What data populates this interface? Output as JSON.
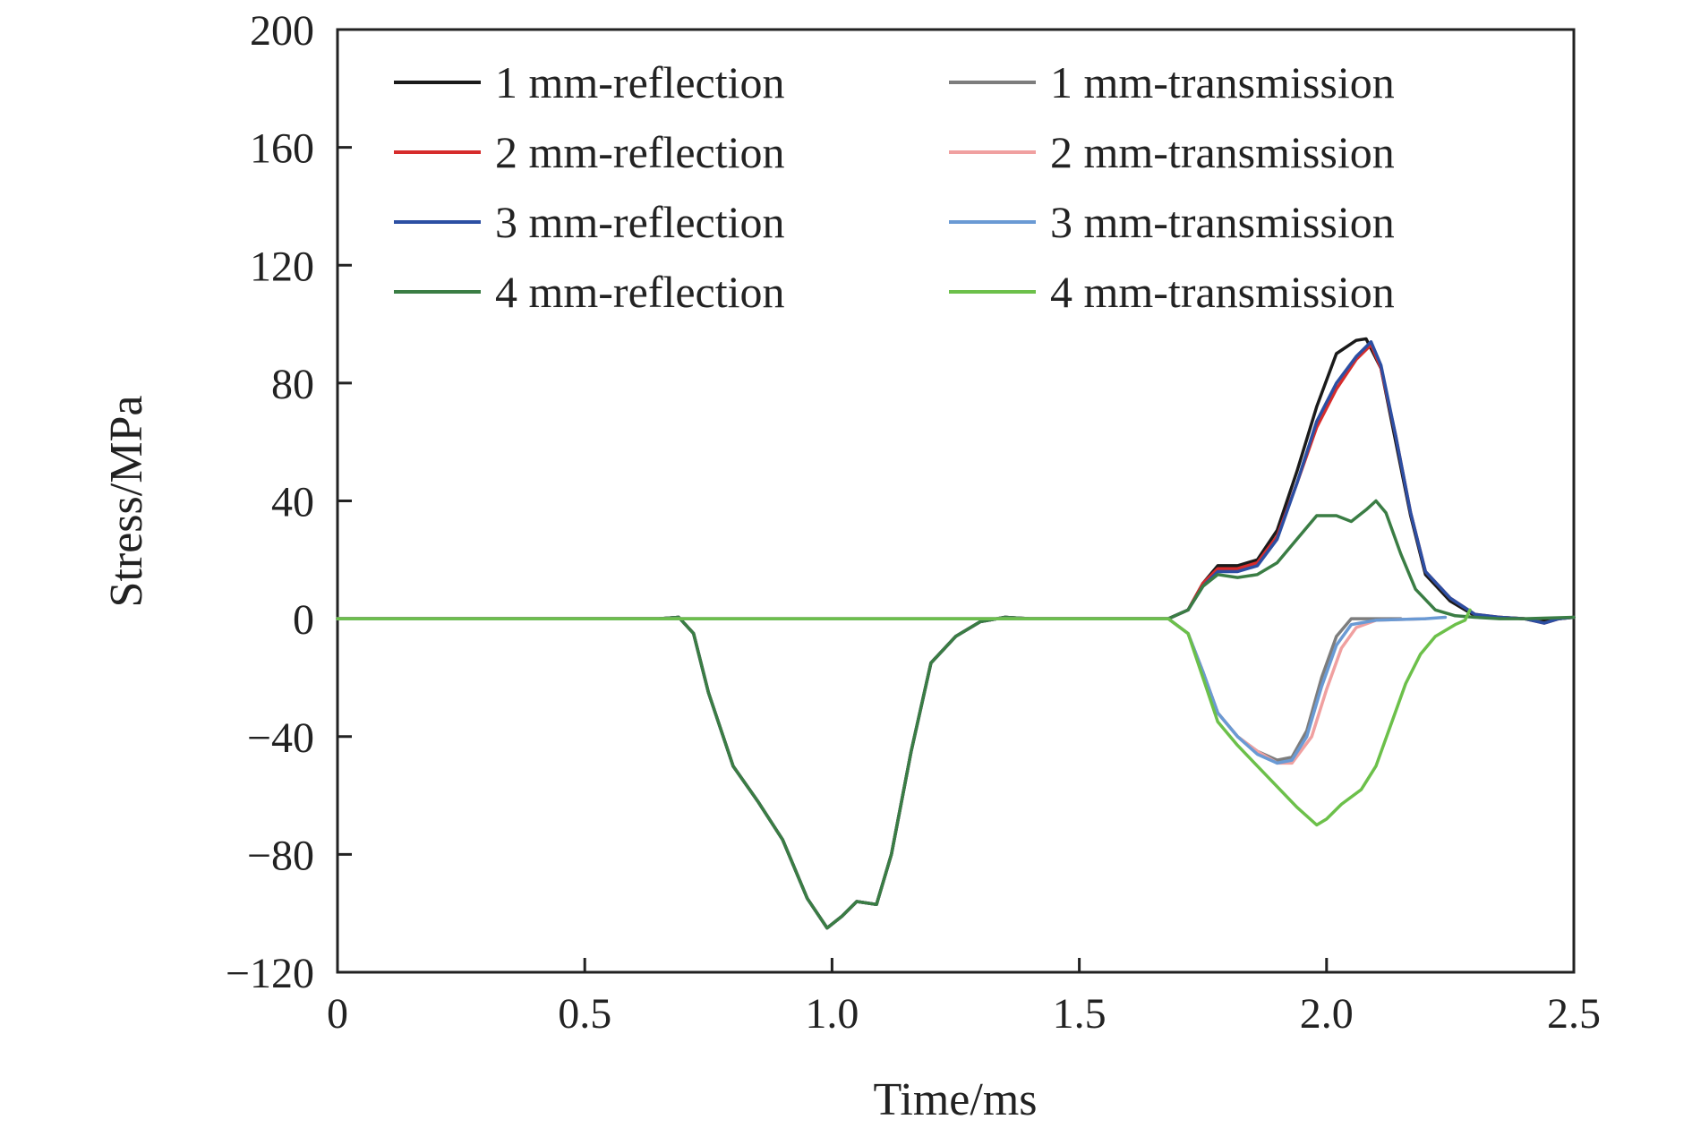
{
  "chart_data": {
    "type": "line",
    "xlabel": "Time/ms",
    "ylabel": "Stress/MPa",
    "xlim": [
      0,
      2.5
    ],
    "ylim": [
      -120,
      200
    ],
    "xticks": [
      0,
      0.5,
      1.0,
      1.5,
      2.0,
      2.5
    ],
    "xtick_labels": [
      "0",
      "0.5",
      "1.0",
      "1.5",
      "2.0",
      "2.5"
    ],
    "yticks": [
      -120,
      -80,
      -40,
      0,
      40,
      80,
      120,
      160,
      200
    ],
    "ytick_labels": [
      "−120",
      "−80",
      "−40",
      "0",
      "40",
      "80",
      "120",
      "160",
      "200"
    ],
    "grid": false,
    "legend_position": "top",
    "series": [
      {
        "name": "1 mm-reflection",
        "color": "#1a1a1a",
        "points": [
          [
            0,
            0
          ],
          [
            0.65,
            0
          ],
          [
            0.69,
            0.5
          ],
          [
            0.72,
            -5
          ],
          [
            0.75,
            -25
          ],
          [
            0.8,
            -50
          ],
          [
            0.85,
            -62
          ],
          [
            0.9,
            -75
          ],
          [
            0.95,
            -95
          ],
          [
            0.99,
            -105
          ],
          [
            1.02,
            -101
          ],
          [
            1.05,
            -96
          ],
          [
            1.09,
            -97
          ],
          [
            1.12,
            -80
          ],
          [
            1.16,
            -45
          ],
          [
            1.2,
            -15
          ],
          [
            1.25,
            -6
          ],
          [
            1.3,
            -1
          ],
          [
            1.35,
            0.5
          ],
          [
            1.4,
            0
          ],
          [
            1.68,
            0
          ],
          [
            1.72,
            3
          ],
          [
            1.75,
            12
          ],
          [
            1.78,
            18
          ],
          [
            1.82,
            18
          ],
          [
            1.86,
            20
          ],
          [
            1.9,
            30
          ],
          [
            1.94,
            50
          ],
          [
            1.98,
            72
          ],
          [
            2.02,
            90
          ],
          [
            2.06,
            94.5
          ],
          [
            2.08,
            95
          ],
          [
            2.11,
            85
          ],
          [
            2.14,
            60
          ],
          [
            2.17,
            35
          ],
          [
            2.2,
            15
          ],
          [
            2.25,
            6
          ],
          [
            2.3,
            1
          ],
          [
            2.35,
            0.5
          ],
          [
            2.4,
            0
          ],
          [
            2.43,
            -1
          ],
          [
            2.47,
            0
          ],
          [
            2.5,
            0.5
          ]
        ]
      },
      {
        "name": "2 mm-reflection",
        "color": "#d62c2c",
        "points": [
          [
            0,
            0
          ],
          [
            0.65,
            0
          ],
          [
            0.69,
            0.5
          ],
          [
            0.72,
            -5
          ],
          [
            0.75,
            -25
          ],
          [
            0.8,
            -50
          ],
          [
            0.85,
            -62
          ],
          [
            0.9,
            -75
          ],
          [
            0.95,
            -95
          ],
          [
            0.99,
            -105
          ],
          [
            1.02,
            -101
          ],
          [
            1.05,
            -96
          ],
          [
            1.09,
            -97
          ],
          [
            1.12,
            -80
          ],
          [
            1.16,
            -45
          ],
          [
            1.2,
            -15
          ],
          [
            1.25,
            -6
          ],
          [
            1.3,
            -1
          ],
          [
            1.35,
            0.5
          ],
          [
            1.4,
            0
          ],
          [
            1.68,
            0
          ],
          [
            1.72,
            3
          ],
          [
            1.75,
            12
          ],
          [
            1.78,
            17
          ],
          [
            1.82,
            17
          ],
          [
            1.86,
            19
          ],
          [
            1.9,
            28
          ],
          [
            1.94,
            46
          ],
          [
            1.98,
            65
          ],
          [
            2.02,
            78
          ],
          [
            2.06,
            88
          ],
          [
            2.09,
            93
          ],
          [
            2.11,
            85
          ],
          [
            2.14,
            62
          ],
          [
            2.17,
            36
          ],
          [
            2.2,
            16
          ],
          [
            2.25,
            7
          ],
          [
            2.3,
            1.5
          ],
          [
            2.35,
            0.5
          ],
          [
            2.4,
            0
          ],
          [
            2.44,
            -1.5
          ],
          [
            2.47,
            0
          ],
          [
            2.5,
            0.5
          ]
        ]
      },
      {
        "name": "3 mm-reflection",
        "color": "#2c4fa3",
        "points": [
          [
            0,
            0
          ],
          [
            0.65,
            0
          ],
          [
            0.69,
            0.5
          ],
          [
            0.72,
            -5
          ],
          [
            0.75,
            -25
          ],
          [
            0.8,
            -50
          ],
          [
            0.85,
            -62
          ],
          [
            0.9,
            -75
          ],
          [
            0.95,
            -95
          ],
          [
            0.99,
            -105
          ],
          [
            1.02,
            -101
          ],
          [
            1.05,
            -96
          ],
          [
            1.09,
            -97
          ],
          [
            1.12,
            -80
          ],
          [
            1.16,
            -45
          ],
          [
            1.2,
            -15
          ],
          [
            1.25,
            -6
          ],
          [
            1.3,
            -1
          ],
          [
            1.35,
            0.5
          ],
          [
            1.4,
            0
          ],
          [
            1.68,
            0
          ],
          [
            1.72,
            3
          ],
          [
            1.75,
            11
          ],
          [
            1.78,
            16
          ],
          [
            1.82,
            16
          ],
          [
            1.86,
            18
          ],
          [
            1.9,
            27
          ],
          [
            1.94,
            46
          ],
          [
            1.98,
            67
          ],
          [
            2.02,
            80
          ],
          [
            2.06,
            89
          ],
          [
            2.09,
            94
          ],
          [
            2.11,
            86
          ],
          [
            2.14,
            62
          ],
          [
            2.17,
            36
          ],
          [
            2.2,
            16
          ],
          [
            2.25,
            7
          ],
          [
            2.3,
            1.5
          ],
          [
            2.35,
            0.5
          ],
          [
            2.4,
            0
          ],
          [
            2.44,
            -1.5
          ],
          [
            2.47,
            0
          ],
          [
            2.5,
            0.5
          ]
        ]
      },
      {
        "name": "4 mm-reflection",
        "color": "#3a7d44",
        "points": [
          [
            0,
            0
          ],
          [
            0.65,
            0
          ],
          [
            0.69,
            0.5
          ],
          [
            0.72,
            -5
          ],
          [
            0.75,
            -25
          ],
          [
            0.8,
            -50
          ],
          [
            0.85,
            -62
          ],
          [
            0.9,
            -75
          ],
          [
            0.95,
            -95
          ],
          [
            0.99,
            -105
          ],
          [
            1.02,
            -101
          ],
          [
            1.05,
            -96
          ],
          [
            1.09,
            -97
          ],
          [
            1.12,
            -80
          ],
          [
            1.16,
            -45
          ],
          [
            1.2,
            -15
          ],
          [
            1.25,
            -6
          ],
          [
            1.3,
            -1
          ],
          [
            1.35,
            0.5
          ],
          [
            1.4,
            0
          ],
          [
            1.68,
            0
          ],
          [
            1.72,
            3
          ],
          [
            1.75,
            11
          ],
          [
            1.78,
            15
          ],
          [
            1.82,
            14
          ],
          [
            1.86,
            15
          ],
          [
            1.9,
            19
          ],
          [
            1.94,
            27
          ],
          [
            1.98,
            35
          ],
          [
            2.02,
            35
          ],
          [
            2.05,
            33
          ],
          [
            2.08,
            37
          ],
          [
            2.1,
            40
          ],
          [
            2.12,
            36
          ],
          [
            2.15,
            22
          ],
          [
            2.18,
            10
          ],
          [
            2.22,
            3
          ],
          [
            2.26,
            1
          ],
          [
            2.3,
            0.5
          ],
          [
            2.35,
            0
          ],
          [
            2.4,
            0
          ],
          [
            2.5,
            0.5
          ]
        ]
      },
      {
        "name": "1 mm-transmission",
        "color": "#7d7d7d",
        "points": [
          [
            0,
            0
          ],
          [
            1.68,
            0
          ],
          [
            1.72,
            -5
          ],
          [
            1.75,
            -18
          ],
          [
            1.78,
            -32
          ],
          [
            1.82,
            -40
          ],
          [
            1.86,
            -45
          ],
          [
            1.9,
            -48
          ],
          [
            1.93,
            -47
          ],
          [
            1.96,
            -38
          ],
          [
            1.99,
            -20
          ],
          [
            2.02,
            -6
          ],
          [
            2.05,
            0
          ],
          [
            2.1,
            0
          ],
          [
            2.15,
            0
          ]
        ]
      },
      {
        "name": "2 mm-transmission",
        "color": "#f0a0a0",
        "points": [
          [
            0,
            0
          ],
          [
            1.68,
            0
          ],
          [
            1.72,
            -5
          ],
          [
            1.75,
            -18
          ],
          [
            1.78,
            -32
          ],
          [
            1.82,
            -40
          ],
          [
            1.86,
            -45
          ],
          [
            1.9,
            -49
          ],
          [
            1.93,
            -49
          ],
          [
            1.97,
            -40
          ],
          [
            2.0,
            -24
          ],
          [
            2.03,
            -10
          ],
          [
            2.06,
            -3
          ],
          [
            2.1,
            -0.5
          ],
          [
            2.2,
            0
          ]
        ]
      },
      {
        "name": "3 mm-transmission",
        "color": "#6a9ad4",
        "points": [
          [
            0,
            0
          ],
          [
            1.68,
            0
          ],
          [
            1.72,
            -5
          ],
          [
            1.75,
            -18
          ],
          [
            1.78,
            -32
          ],
          [
            1.82,
            -40
          ],
          [
            1.86,
            -46
          ],
          [
            1.9,
            -49
          ],
          [
            1.93,
            -48
          ],
          [
            1.96,
            -40
          ],
          [
            1.99,
            -23
          ],
          [
            2.02,
            -9
          ],
          [
            2.05,
            -2
          ],
          [
            2.1,
            -0.5
          ],
          [
            2.2,
            0
          ],
          [
            2.24,
            0.5
          ]
        ]
      },
      {
        "name": "4 mm-transmission",
        "color": "#6cc04a",
        "points": [
          [
            0,
            0
          ],
          [
            1.68,
            0
          ],
          [
            1.72,
            -5
          ],
          [
            1.75,
            -20
          ],
          [
            1.78,
            -35
          ],
          [
            1.82,
            -43
          ],
          [
            1.86,
            -50
          ],
          [
            1.9,
            -57
          ],
          [
            1.94,
            -64
          ],
          [
            1.98,
            -70
          ],
          [
            2.0,
            -68
          ],
          [
            2.03,
            -63
          ],
          [
            2.07,
            -58
          ],
          [
            2.1,
            -50
          ],
          [
            2.13,
            -36
          ],
          [
            2.16,
            -22
          ],
          [
            2.19,
            -12
          ],
          [
            2.22,
            -6
          ],
          [
            2.26,
            -2
          ],
          [
            2.28,
            -0.5
          ],
          [
            2.29,
            3
          ]
        ]
      }
    ]
  }
}
